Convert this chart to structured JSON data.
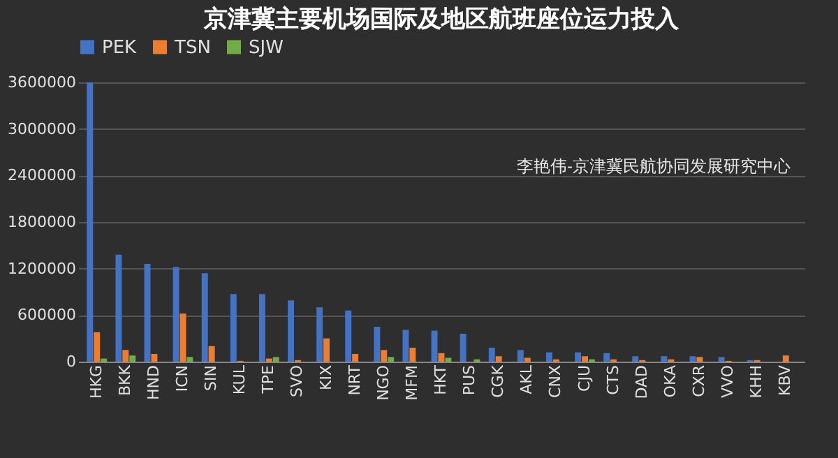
{
  "chart_data": {
    "type": "bar",
    "title": "京津冀主要机场国际及地区航班座位运力投入",
    "categories": [
      "HKG",
      "BKK",
      "HND",
      "ICN",
      "SIN",
      "KUL",
      "TPE",
      "SVO",
      "KIX",
      "NRT",
      "NGO",
      "MFM",
      "HKT",
      "PUS",
      "CGK",
      "AKL",
      "CNX",
      "CJU",
      "CTS",
      "DAD",
      "OKA",
      "CXR",
      "VVO",
      "KHH",
      "KBV"
    ],
    "series": [
      {
        "name": "PEK",
        "color": "#4472c4",
        "values": [
          3600000,
          1380000,
          1260000,
          1220000,
          1140000,
          870000,
          870000,
          790000,
          700000,
          660000,
          450000,
          410000,
          400000,
          360000,
          180000,
          150000,
          120000,
          120000,
          110000,
          70000,
          70000,
          70000,
          60000,
          20000,
          0
        ]
      },
      {
        "name": "TSN",
        "color": "#ed7d31",
        "values": [
          380000,
          150000,
          100000,
          620000,
          200000,
          10000,
          40000,
          20000,
          300000,
          100000,
          150000,
          180000,
          110000,
          0,
          70000,
          50000,
          30000,
          70000,
          30000,
          20000,
          30000,
          60000,
          10000,
          20000,
          80000
        ]
      },
      {
        "name": "SJW",
        "color": "#70ad47",
        "values": [
          40000,
          80000,
          0,
          60000,
          0,
          0,
          60000,
          0,
          0,
          0,
          60000,
          0,
          50000,
          30000,
          0,
          0,
          0,
          30000,
          0,
          0,
          0,
          0,
          0,
          0,
          0
        ]
      }
    ],
    "ylim": [
      0,
      3600000
    ],
    "yticks": [
      0,
      600000,
      1200000,
      1800000,
      2400000,
      3000000,
      3600000
    ],
    "grid": "y",
    "legend": "top",
    "annotations": [
      "李艳伟-京津冀民航协同发展研究中心"
    ]
  }
}
